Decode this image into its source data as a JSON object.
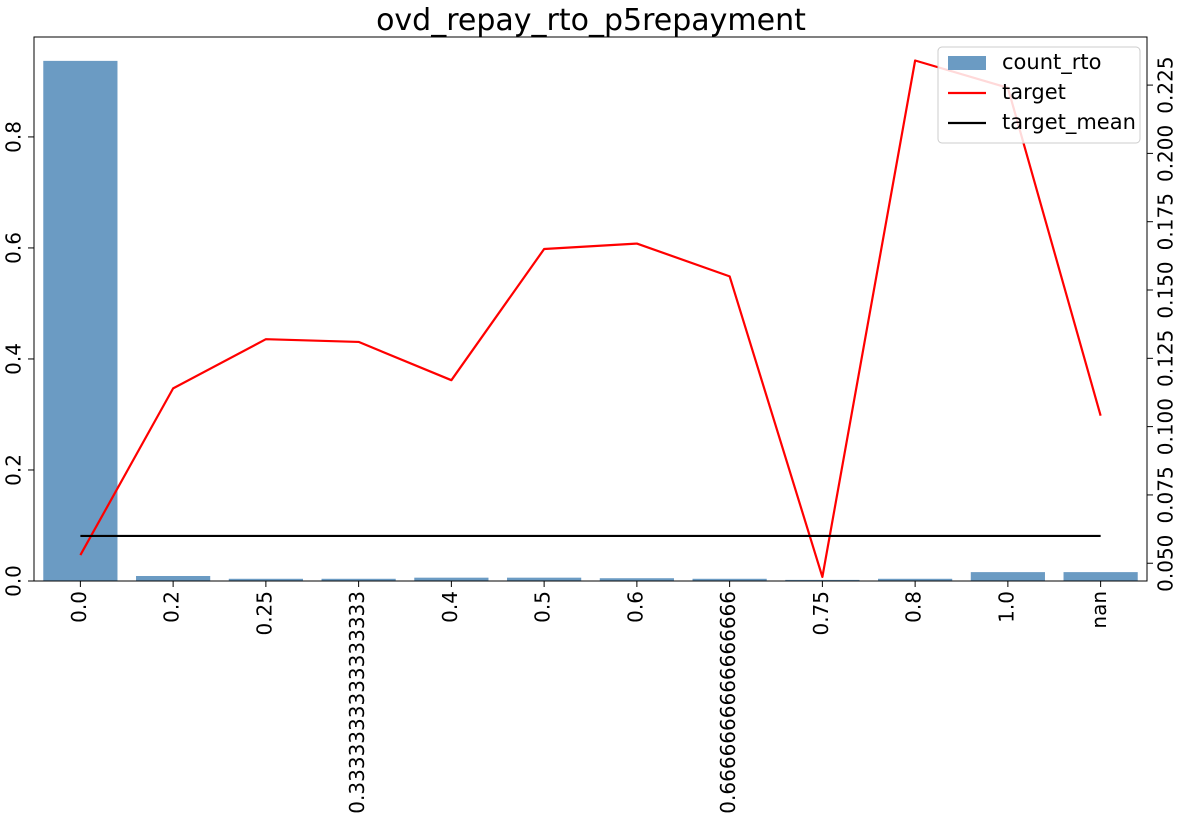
{
  "chart_data": {
    "type": "bar",
    "title": "ovd_repay_rto_p5repayment",
    "xlabel": "",
    "ylabel": "",
    "categories": [
      "0.0",
      "0.2",
      "0.25",
      "0.3333333333333333",
      "0.4",
      "0.5",
      "0.6",
      "0.6666666666666666",
      "0.75",
      "0.8",
      "1.0",
      "nan"
    ],
    "series": [
      {
        "name": "count_rto",
        "kind": "bar",
        "axis": "left",
        "color": "#6b9bc3",
        "values": [
          0.937,
          0.009,
          0.004,
          0.004,
          0.006,
          0.006,
          0.005,
          0.004,
          0.002,
          0.004,
          0.016,
          0.016
        ]
      },
      {
        "name": "target",
        "kind": "line",
        "axis": "right",
        "color": "#ff0000",
        "values": [
          0.053,
          0.114,
          0.132,
          0.131,
          0.117,
          0.165,
          0.167,
          0.155,
          0.045,
          0.234,
          0.224,
          0.104
        ]
      },
      {
        "name": "target_mean",
        "kind": "line",
        "axis": "right",
        "color": "#000000",
        "values": [
          0.06,
          0.06,
          0.06,
          0.06,
          0.06,
          0.06,
          0.06,
          0.06,
          0.06,
          0.06,
          0.06,
          0.06
        ]
      }
    ],
    "ylim_left": [
      0,
      0.98
    ],
    "ylim_right": [
      0.0435,
      0.2426
    ],
    "yticks_left": [
      "0.0",
      "0.2",
      "0.4",
      "0.6",
      "0.8"
    ],
    "yticks_left_values": [
      0.0,
      0.2,
      0.4,
      0.6,
      0.8
    ],
    "yticks_right": [
      "0.050",
      "0.075",
      "0.100",
      "0.125",
      "0.150",
      "0.175",
      "0.200",
      "0.225"
    ],
    "yticks_right_values": [
      0.05,
      0.075,
      0.1,
      0.125,
      0.15,
      0.175,
      0.2,
      0.225
    ],
    "legend_position": "top-right",
    "grid": false
  }
}
